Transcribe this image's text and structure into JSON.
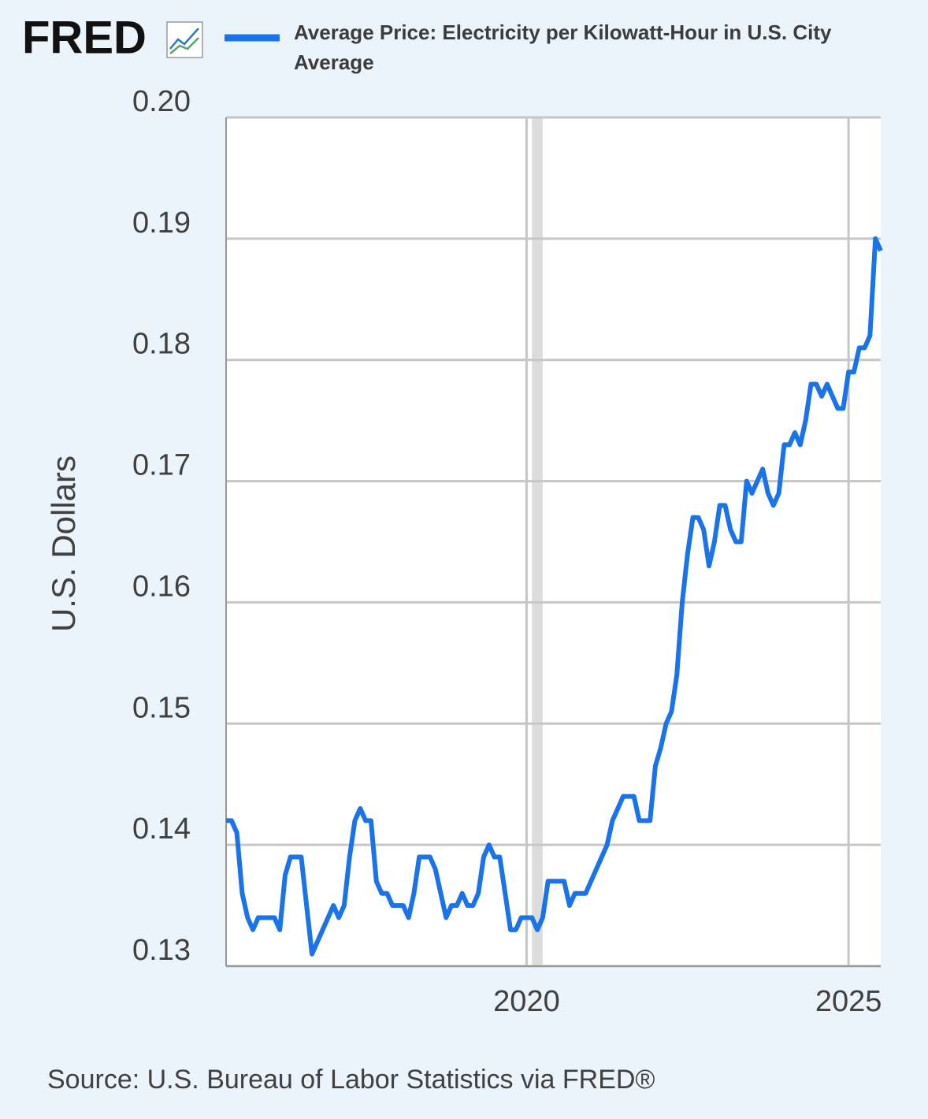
{
  "chart_data": {
    "type": "line",
    "logo": "FRED",
    "ylabel": "U.S. Dollars",
    "source": "Source: U.S. Bureau of Labor Statistics via FRED®",
    "x": [
      2015.333,
      2015.417,
      2015.5,
      2015.583,
      2015.667,
      2015.75,
      2015.833,
      2015.917,
      2016.0,
      2016.083,
      2016.167,
      2016.25,
      2016.333,
      2016.417,
      2016.5,
      2016.583,
      2016.667,
      2016.75,
      2016.833,
      2016.917,
      2017.0,
      2017.083,
      2017.167,
      2017.25,
      2017.333,
      2017.417,
      2017.5,
      2017.583,
      2017.667,
      2017.75,
      2017.833,
      2017.917,
      2018.0,
      2018.083,
      2018.167,
      2018.25,
      2018.333,
      2018.417,
      2018.5,
      2018.583,
      2018.667,
      2018.75,
      2018.833,
      2018.917,
      2019.0,
      2019.083,
      2019.167,
      2019.25,
      2019.333,
      2019.417,
      2019.5,
      2019.583,
      2019.667,
      2019.75,
      2019.833,
      2019.917,
      2020.0,
      2020.083,
      2020.167,
      2020.25,
      2020.333,
      2020.417,
      2020.5,
      2020.583,
      2020.667,
      2020.75,
      2020.833,
      2020.917,
      2021.0,
      2021.083,
      2021.167,
      2021.25,
      2021.333,
      2021.417,
      2021.5,
      2021.583,
      2021.667,
      2021.75,
      2021.833,
      2021.917,
      2022.0,
      2022.083,
      2022.167,
      2022.25,
      2022.333,
      2022.417,
      2022.5,
      2022.583,
      2022.667,
      2022.75,
      2022.833,
      2022.917,
      2023.0,
      2023.083,
      2023.167,
      2023.25,
      2023.333,
      2023.417,
      2023.5,
      2023.583,
      2023.667,
      2023.75,
      2023.833,
      2023.917,
      2024.0,
      2024.083,
      2024.167,
      2024.25,
      2024.333,
      2024.417,
      2024.5,
      2024.583,
      2024.667,
      2024.75,
      2024.833,
      2024.917,
      2025.0,
      2025.083,
      2025.167,
      2025.25,
      2025.333,
      2025.417,
      2025.5
    ],
    "series": [
      {
        "name": "Average Price: Electricity per Kilowatt-Hour in U.S. City Average",
        "color": "#1a73e8",
        "values": [
          0.142,
          0.142,
          0.141,
          0.136,
          0.134,
          0.133,
          0.134,
          0.134,
          0.134,
          0.134,
          0.133,
          0.1375,
          0.139,
          0.139,
          0.139,
          0.135,
          0.131,
          0.132,
          0.133,
          0.134,
          0.135,
          0.134,
          0.135,
          0.139,
          0.142,
          0.143,
          0.142,
          0.142,
          0.137,
          0.136,
          0.136,
          0.135,
          0.135,
          0.135,
          0.134,
          0.136,
          0.139,
          0.139,
          0.139,
          0.138,
          0.136,
          0.134,
          0.135,
          0.135,
          0.136,
          0.135,
          0.135,
          0.136,
          0.139,
          0.14,
          0.139,
          0.139,
          0.136,
          0.133,
          0.133,
          0.134,
          0.134,
          0.134,
          0.133,
          0.134,
          0.137,
          0.137,
          0.137,
          0.137,
          0.135,
          0.136,
          0.136,
          0.136,
          0.137,
          0.138,
          0.139,
          0.14,
          0.142,
          0.143,
          0.144,
          0.144,
          0.144,
          0.142,
          0.142,
          0.142,
          0.1465,
          0.148,
          0.15,
          0.151,
          0.154,
          0.16,
          0.164,
          0.167,
          0.167,
          0.166,
          0.163,
          0.165,
          0.168,
          0.168,
          0.166,
          0.165,
          0.165,
          0.17,
          0.169,
          0.17,
          0.171,
          0.169,
          0.168,
          0.169,
          0.173,
          0.173,
          0.174,
          0.173,
          0.175,
          0.178,
          0.178,
          0.177,
          0.178,
          0.177,
          0.176,
          0.176,
          0.179,
          0.179,
          0.181,
          0.181,
          0.182,
          0.19,
          0.189
        ]
      }
    ],
    "recessions": [
      {
        "start": 2020.083,
        "end": 2020.25
      }
    ],
    "xlim": [
      2015.333,
      2025.5
    ],
    "xticks": [
      2020,
      2025
    ],
    "ylim": [
      0.13,
      0.2
    ],
    "yticks": [
      0.13,
      0.14,
      0.15,
      0.16,
      0.17,
      0.18,
      0.19,
      {
        "value": 0.2,
        "label": "0.20"
      }
    ],
    "grid": true
  }
}
